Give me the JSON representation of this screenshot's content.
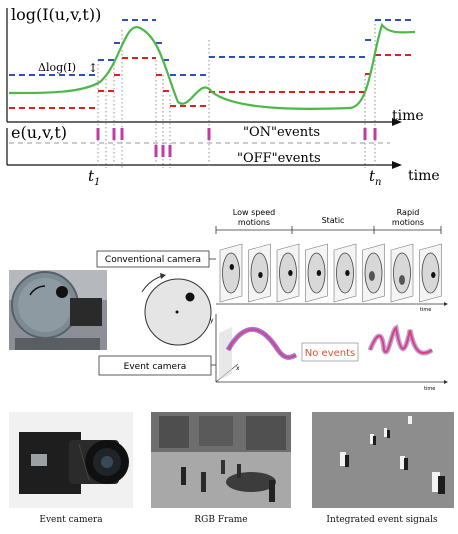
{
  "top": {
    "y_label": "log(I(u,v,t))",
    "delta_label": "Δlog(I)",
    "e_label": "e(u,v,t)",
    "time_label": "time",
    "on_label": "\"ON\"events",
    "off_label": "\"OFF\"events",
    "t1_label": "t",
    "t1_sub": "1",
    "tn_label": "t",
    "tn_sub": "n",
    "colors": {
      "signal": "#4cb848",
      "upper": "#2f4fbf",
      "lower": "#e02020",
      "event": "#c03ca0"
    }
  },
  "middle": {
    "low_speed": "Low speed\nmotions",
    "static": "Static",
    "rapid": "Rapid\nmotions",
    "conventional_label": "Conventional camera",
    "event_label": "Event camera",
    "no_events": "No events",
    "time_small": "time",
    "axis_y": "y",
    "axis_x": "x",
    "no_events_color": "#e05030"
  },
  "bottom": {
    "captions": [
      "Event camera",
      "RGB Frame",
      "Integrated event signals"
    ]
  }
}
